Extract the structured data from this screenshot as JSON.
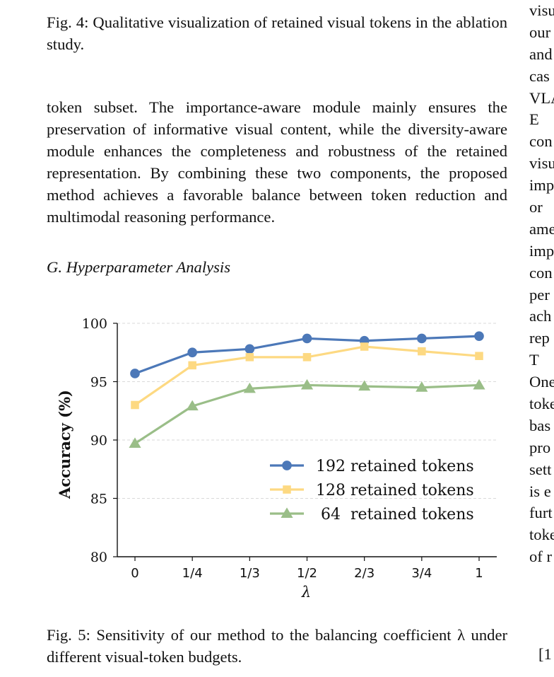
{
  "fig4_caption": "Fig. 4: Qualitative visualization of retained visual tokens in the ablation study.",
  "paragraph": "token subset. The importance-aware module mainly ensures the preservation of informative visual content, while the diversity-aware module enhances the completeness and robustness of the retained representation. By combining these two components, the proposed method achieves a favorable balance between token reduction and multimodal reasoning performance.",
  "section_heading": "G.  Hyperparameter Analysis",
  "fig5_caption": "Fig. 5: Sensitivity of our method to the balancing coefficient λ under different visual-token budgets.",
  "right_column_fragments": [
    "visu",
    "our",
    "and",
    "cas",
    "VLA",
    " E",
    "con",
    "visu",
    "imp",
    "or ",
    "ame",
    "imp",
    "con",
    "per",
    "ach",
    "rep",
    " T",
    "One",
    "toke",
    "bas",
    "pro",
    "sett",
    "is e",
    "furt",
    "toke",
    "of r"
  ],
  "reference_fragment": "[1",
  "chart_data": {
    "type": "line",
    "categories": [
      "0",
      "1/4",
      "1/3",
      "1/2",
      "2/3",
      "3/4",
      "1"
    ],
    "xlabel": "λ",
    "ylabel": "Accuracy (%)",
    "ylim": [
      80,
      100
    ],
    "yticks": [
      80,
      85,
      90,
      95,
      100
    ],
    "grid": true,
    "legend_position": "lower-right",
    "series": [
      {
        "name": "192 retained tokens",
        "color": "#4c78b8",
        "marker": "circle",
        "values": [
          95.7,
          97.5,
          97.8,
          98.7,
          98.5,
          98.7,
          98.9
        ]
      },
      {
        "name": "128 retained tokens",
        "color": "#fdd982",
        "marker": "square",
        "values": [
          93.0,
          96.4,
          97.1,
          97.1,
          98.0,
          97.6,
          97.2
        ]
      },
      {
        "name": " 64  retained tokens",
        "color": "#9abe88",
        "marker": "triangle",
        "values": [
          89.7,
          92.9,
          94.4,
          94.7,
          94.6,
          94.5,
          94.7
        ]
      }
    ]
  }
}
